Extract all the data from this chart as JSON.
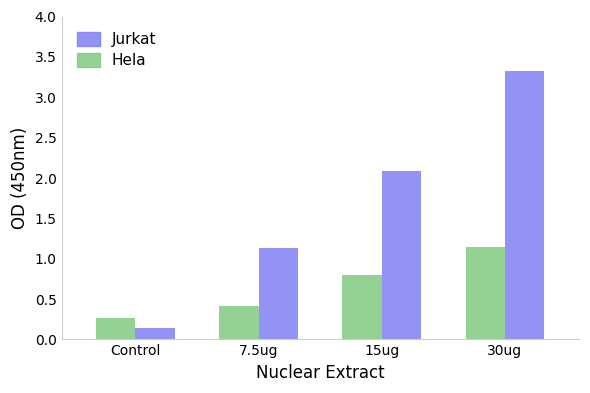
{
  "categories": [
    "Control",
    "7.5ug",
    "15ug",
    "30ug"
  ],
  "jurkat_values": [
    0.14,
    1.13,
    2.09,
    3.33
  ],
  "hela_values": [
    0.26,
    0.42,
    0.8,
    1.15
  ],
  "jurkat_color": "#7B7BF5",
  "hela_color": "#7DC87D",
  "xlabel": "Nuclear Extract",
  "ylabel": "OD (450nm)",
  "ylim": [
    0,
    4.0
  ],
  "yticks": [
    0.0,
    0.5,
    1.0,
    1.5,
    2.0,
    2.5,
    3.0,
    3.5,
    4.0
  ],
  "legend_labels": [
    "Jurkat",
    "Hela"
  ],
  "bar_width": 0.32,
  "background_color": "#ffffff",
  "axis_fontsize": 12,
  "tick_fontsize": 10,
  "legend_fontsize": 11,
  "figsize": [
    5.9,
    3.93
  ],
  "dpi": 100
}
